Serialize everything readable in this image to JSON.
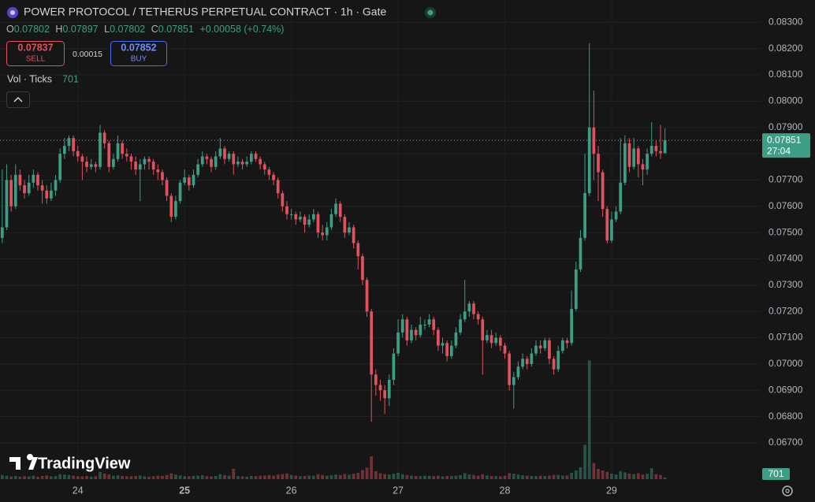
{
  "header": {
    "title": "POWER PROTOCOL / TETHERUS PERPETUAL CONTRACT · 1h · Gate",
    "ohlc": {
      "o_label": "O",
      "o": "0.07802",
      "h_label": "H",
      "h": "0.07897",
      "l_label": "L",
      "l": "0.07802",
      "c_label": "C",
      "c": "0.07851",
      "change": "+0.00058 (+0.74%)"
    },
    "sell": {
      "price": "0.07837",
      "label": "SELL"
    },
    "spread": "0.00015",
    "buy": {
      "price": "0.07852",
      "label": "BUY"
    },
    "volume_legend": {
      "label": "Vol · Ticks",
      "value": "701"
    }
  },
  "brand": "TradingView",
  "last_price": {
    "label": "0.07851",
    "countdown": "27:04",
    "volume_label": "701"
  },
  "chart_data": {
    "type": "candlestick",
    "up_color": "#3d9e86",
    "down_color": "#e0525e",
    "grid": true,
    "ylim": [
      0.0655,
      0.08385
    ],
    "yticks": [
      {
        "value": 0.067,
        "label": "0.06700"
      },
      {
        "value": 0.068,
        "label": "0.06800"
      },
      {
        "value": 0.069,
        "label": "0.06900"
      },
      {
        "value": 0.07,
        "label": "0.07000"
      },
      {
        "value": 0.071,
        "label": "0.07100"
      },
      {
        "value": 0.072,
        "label": "0.07200"
      },
      {
        "value": 0.073,
        "label": "0.07300"
      },
      {
        "value": 0.074,
        "label": "0.07400"
      },
      {
        "value": 0.075,
        "label": "0.07500"
      },
      {
        "value": 0.076,
        "label": "0.07600"
      },
      {
        "value": 0.077,
        "label": "0.07700"
      },
      {
        "value": 0.078,
        "label": "0.07800"
      },
      {
        "value": 0.079,
        "label": "0.07900"
      },
      {
        "value": 0.08,
        "label": "0.08000"
      },
      {
        "value": 0.081,
        "label": "0.08100"
      },
      {
        "value": 0.082,
        "label": "0.08200"
      },
      {
        "value": 0.083,
        "label": "0.08300"
      }
    ],
    "xlim": [
      -0.5,
      170.5
    ],
    "xticks": [
      {
        "value": 17,
        "label": "24"
      },
      {
        "value": 41,
        "label": "25"
      },
      {
        "value": 65,
        "label": "26"
      },
      {
        "value": 89,
        "label": "27"
      },
      {
        "value": 113,
        "label": "28"
      },
      {
        "value": 137,
        "label": "29"
      }
    ],
    "vol_ylim": [
      0,
      60000
    ],
    "open": [
      0.0748,
      0.0752,
      0.077,
      0.076,
      0.0772,
      0.0768,
      0.0765,
      0.0769,
      0.0772,
      0.0768,
      0.0766,
      0.0763,
      0.0766,
      0.077,
      0.078,
      0.0783,
      0.0786,
      0.0781,
      0.0779,
      0.0777,
      0.0775,
      0.0776,
      0.0775,
      0.0788,
      0.0784,
      0.0775,
      0.0778,
      0.0784,
      0.078,
      0.0779,
      0.0777,
      0.0774,
      0.0776,
      0.0778,
      0.0777,
      0.0774,
      0.0773,
      0.077,
      0.0764,
      0.0756,
      0.0762,
      0.0769,
      0.0771,
      0.0768,
      0.0772,
      0.0776,
      0.0779,
      0.0778,
      0.0775,
      0.0779,
      0.0782,
      0.0778,
      0.078,
      0.0776,
      0.0777,
      0.0776,
      0.0777,
      0.078,
      0.0778,
      0.0776,
      0.0774,
      0.0772,
      0.077,
      0.0765,
      0.076,
      0.0757,
      0.0757,
      0.0755,
      0.0756,
      0.0753,
      0.0755,
      0.0757,
      0.075,
      0.0749,
      0.0752,
      0.0757,
      0.0761,
      0.0756,
      0.075,
      0.0752,
      0.0746,
      0.0741,
      0.0732,
      0.072,
      0.0696,
      0.0692,
      0.069,
      0.0687,
      0.0694,
      0.0704,
      0.0712,
      0.0717,
      0.0709,
      0.0713,
      0.0711,
      0.0715,
      0.0715,
      0.0717,
      0.0713,
      0.0707,
      0.0708,
      0.0703,
      0.0707,
      0.0712,
      0.0717,
      0.072,
      0.0723,
      0.0719,
      0.0717,
      0.0709,
      0.0711,
      0.0708,
      0.071,
      0.0707,
      0.0704,
      0.0692,
      0.0695,
      0.0699,
      0.0702,
      0.07,
      0.0704,
      0.0707,
      0.0706,
      0.0709,
      0.0702,
      0.0698,
      0.0705,
      0.0709,
      0.0708,
      0.0721,
      0.0736,
      0.0748,
      0.0765,
      0.079,
      0.078,
      0.0773,
      0.0759,
      0.0747,
      0.0755,
      0.0758,
      0.0769,
      0.0784,
      0.0775,
      0.0782,
      0.0776,
      0.0774,
      0.078,
      0.0783,
      0.0781,
      0.07802
    ],
    "high": [
      0.0774,
      0.0776,
      0.0772,
      0.0776,
      0.0774,
      0.077,
      0.0772,
      0.0774,
      0.0773,
      0.077,
      0.0768,
      0.0769,
      0.0772,
      0.0782,
      0.0786,
      0.0787,
      0.0787,
      0.0783,
      0.078,
      0.0779,
      0.0778,
      0.0777,
      0.0791,
      0.0789,
      0.0785,
      0.078,
      0.0787,
      0.0785,
      0.0782,
      0.078,
      0.0779,
      0.0778,
      0.0779,
      0.0779,
      0.0778,
      0.0776,
      0.0774,
      0.0771,
      0.0765,
      0.0764,
      0.077,
      0.0774,
      0.0772,
      0.0774,
      0.0778,
      0.0781,
      0.078,
      0.0779,
      0.0781,
      0.0786,
      0.0783,
      0.0781,
      0.0781,
      0.0779,
      0.0778,
      0.0779,
      0.0781,
      0.0781,
      0.0779,
      0.0777,
      0.0775,
      0.0773,
      0.0771,
      0.0766,
      0.0762,
      0.0759,
      0.0758,
      0.0758,
      0.0757,
      0.0757,
      0.0759,
      0.0758,
      0.0753,
      0.0754,
      0.0759,
      0.0763,
      0.0762,
      0.0757,
      0.0754,
      0.0753,
      0.0747,
      0.0742,
      0.0733,
      0.0721,
      0.0698,
      0.0694,
      0.0692,
      0.0696,
      0.0706,
      0.0717,
      0.0719,
      0.0718,
      0.0715,
      0.0714,
      0.0718,
      0.0717,
      0.0719,
      0.0718,
      0.0714,
      0.071,
      0.0709,
      0.0709,
      0.0714,
      0.0719,
      0.0732,
      0.0724,
      0.0724,
      0.072,
      0.0718,
      0.0713,
      0.0713,
      0.0712,
      0.0711,
      0.0708,
      0.0705,
      0.0697,
      0.0701,
      0.0704,
      0.0703,
      0.0706,
      0.0709,
      0.0709,
      0.071,
      0.071,
      0.0703,
      0.0707,
      0.071,
      0.071,
      0.0728,
      0.0739,
      0.0751,
      0.078,
      0.0822,
      0.0804,
      0.0783,
      0.0774,
      0.076,
      0.0758,
      0.076,
      0.0786,
      0.0787,
      0.0786,
      0.0786,
      0.0783,
      0.0778,
      0.0782,
      0.0792,
      0.0785,
      0.0791,
      0.07897
    ],
    "low": [
      0.0746,
      0.0751,
      0.0758,
      0.0759,
      0.0766,
      0.0763,
      0.0764,
      0.0767,
      0.0766,
      0.0761,
      0.0761,
      0.0762,
      0.0764,
      0.0769,
      0.0778,
      0.0781,
      0.0779,
      0.0777,
      0.077,
      0.0773,
      0.0774,
      0.0773,
      0.0774,
      0.0782,
      0.0773,
      0.0774,
      0.0777,
      0.0778,
      0.0777,
      0.0774,
      0.0772,
      0.0762,
      0.0774,
      0.0774,
      0.0772,
      0.077,
      0.0768,
      0.0762,
      0.0754,
      0.0755,
      0.0761,
      0.0768,
      0.0766,
      0.0767,
      0.0771,
      0.0775,
      0.0776,
      0.0773,
      0.0774,
      0.0778,
      0.0776,
      0.0777,
      0.0772,
      0.0775,
      0.0774,
      0.0775,
      0.0776,
      0.0777,
      0.0774,
      0.0772,
      0.077,
      0.0768,
      0.0763,
      0.0758,
      0.0755,
      0.0755,
      0.0753,
      0.0754,
      0.075,
      0.0752,
      0.0754,
      0.0748,
      0.0747,
      0.0747,
      0.0751,
      0.0756,
      0.0754,
      0.0748,
      0.0749,
      0.0744,
      0.0736,
      0.073,
      0.0718,
      0.0678,
      0.0688,
      0.0686,
      0.0681,
      0.0684,
      0.0692,
      0.0703,
      0.071,
      0.0707,
      0.0708,
      0.0709,
      0.071,
      0.0713,
      0.0714,
      0.0711,
      0.0705,
      0.0704,
      0.0701,
      0.0702,
      0.0706,
      0.0711,
      0.0716,
      0.0718,
      0.0717,
      0.0715,
      0.0696,
      0.0708,
      0.0706,
      0.0707,
      0.0705,
      0.0702,
      0.069,
      0.0683,
      0.0694,
      0.0698,
      0.0698,
      0.0699,
      0.0703,
      0.0704,
      0.0705,
      0.07,
      0.0696,
      0.0697,
      0.0704,
      0.0706,
      0.0707,
      0.072,
      0.0735,
      0.0747,
      0.0764,
      0.077,
      0.0762,
      0.0756,
      0.0746,
      0.0746,
      0.0754,
      0.0757,
      0.0768,
      0.0773,
      0.0774,
      0.0771,
      0.0768,
      0.0772,
      0.0779,
      0.0779,
      0.0778,
      0.07802
    ],
    "close": [
      0.0752,
      0.077,
      0.076,
      0.0772,
      0.0768,
      0.0765,
      0.0769,
      0.0772,
      0.0768,
      0.0766,
      0.0763,
      0.0766,
      0.077,
      0.078,
      0.0783,
      0.0786,
      0.0781,
      0.0779,
      0.0777,
      0.0775,
      0.0776,
      0.0775,
      0.0788,
      0.0784,
      0.0775,
      0.0778,
      0.0784,
      0.078,
      0.0779,
      0.0777,
      0.0774,
      0.0776,
      0.0778,
      0.0777,
      0.0774,
      0.0773,
      0.077,
      0.0764,
      0.0756,
      0.0762,
      0.0769,
      0.0771,
      0.0768,
      0.0772,
      0.0776,
      0.0779,
      0.0778,
      0.0775,
      0.0779,
      0.0782,
      0.0778,
      0.078,
      0.0776,
      0.0777,
      0.0776,
      0.0777,
      0.078,
      0.0778,
      0.0776,
      0.0774,
      0.0772,
      0.077,
      0.0765,
      0.076,
      0.0757,
      0.0757,
      0.0755,
      0.0756,
      0.0753,
      0.0755,
      0.0757,
      0.075,
      0.0749,
      0.0752,
      0.0757,
      0.0761,
      0.0756,
      0.075,
      0.0752,
      0.0746,
      0.0741,
      0.0732,
      0.072,
      0.0696,
      0.0692,
      0.069,
      0.0687,
      0.0694,
      0.0704,
      0.0712,
      0.0717,
      0.0709,
      0.0713,
      0.0711,
      0.0715,
      0.0715,
      0.0717,
      0.0713,
      0.0707,
      0.0708,
      0.0703,
      0.0707,
      0.0712,
      0.0717,
      0.072,
      0.0723,
      0.0719,
      0.0717,
      0.0709,
      0.0711,
      0.0708,
      0.071,
      0.0707,
      0.0704,
      0.0692,
      0.0695,
      0.0699,
      0.0702,
      0.07,
      0.0704,
      0.0707,
      0.0706,
      0.0709,
      0.0702,
      0.0698,
      0.0705,
      0.0709,
      0.0708,
      0.0721,
      0.0736,
      0.0748,
      0.0765,
      0.079,
      0.078,
      0.0773,
      0.0759,
      0.0747,
      0.0755,
      0.0758,
      0.0769,
      0.0784,
      0.0775,
      0.0782,
      0.0776,
      0.0774,
      0.078,
      0.0783,
      0.0781,
      0.07802,
      0.07851
    ],
    "volume": [
      1800,
      1500,
      1200,
      1400,
      1100,
      1300,
      1200,
      1500,
      1000,
      1400,
      1600,
      1200,
      1300,
      2200,
      2000,
      1800,
      1500,
      1300,
      1200,
      1400,
      1100,
      1300,
      3200,
      2500,
      2000,
      1500,
      1700,
      1400,
      1200,
      1300,
      1400,
      1600,
      1200,
      1100,
      1300,
      1500,
      1400,
      1800,
      2500,
      2000,
      1600,
      1300,
      1200,
      1400,
      1500,
      1700,
      1300,
      1200,
      1400,
      2200,
      1800,
      1500,
      4500,
      1300,
      1200,
      1100,
      1400,
      1300,
      1500,
      1600,
      1800,
      1500,
      2000,
      2200,
      2500,
      1800,
      1500,
      1300,
      1400,
      1600,
      1500,
      2200,
      1800,
      1500,
      1700,
      2000,
      1800,
      2200,
      1900,
      2400,
      2800,
      4000,
      5000,
      10000,
      3500,
      2600,
      2200,
      2000,
      2400,
      2800,
      2200,
      1800,
      1500,
      1400,
      1300,
      1500,
      1400,
      1300,
      1500,
      1200,
      1400,
      1300,
      1500,
      1700,
      2600,
      2000,
      1800,
      1500,
      2200,
      1600,
      1400,
      1300,
      1200,
      1500,
      2600,
      2400,
      2000,
      1700,
      1500,
      1400,
      1300,
      1500,
      1400,
      1600,
      1900,
      1800,
      1500,
      1600,
      2800,
      3800,
      5200,
      15000,
      52000,
      7000,
      4500,
      3800,
      3200,
      2400,
      2000,
      3500,
      3000,
      2400,
      2200,
      2600,
      2000,
      2400,
      4800,
      2200,
      1800,
      701
    ]
  }
}
